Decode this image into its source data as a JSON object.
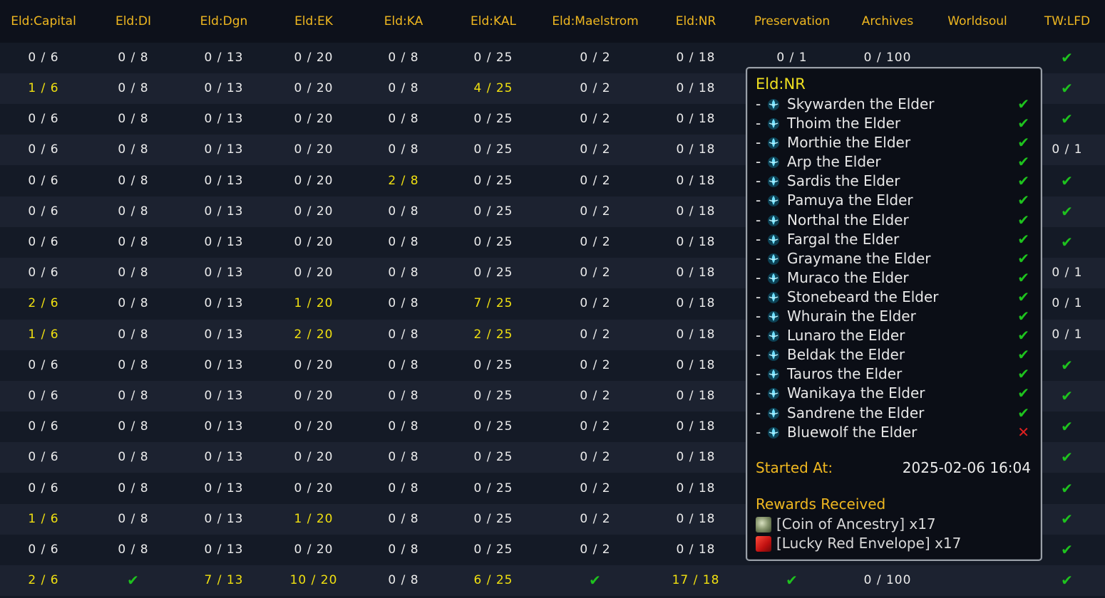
{
  "colors": {
    "header_text": "#f0b820",
    "highlight_text": "#f0e010",
    "check": "#1ec21e",
    "cross": "#e02020"
  },
  "columns": [
    "Eld:Capital",
    "Eld:DI",
    "Eld:Dgn",
    "Eld:EK",
    "Eld:KA",
    "Eld:KAL",
    "Eld:Maelstrom",
    "Eld:NR",
    "Preservation",
    "Archives",
    "Worldsoul",
    "TW:LFD"
  ],
  "rows": [
    [
      {
        "t": "0 / 6"
      },
      {
        "t": "0 / 8"
      },
      {
        "t": "0 / 13"
      },
      {
        "t": "0 / 20"
      },
      {
        "t": "0 / 8"
      },
      {
        "t": "0 / 25"
      },
      {
        "t": "0 / 2"
      },
      {
        "t": "0 / 18"
      },
      {
        "t": "0 / 1"
      },
      {
        "t": "0 / 100"
      },
      {
        "t": ""
      },
      {
        "t": "✔",
        "k": "check"
      }
    ],
    [
      {
        "t": "1 / 6",
        "k": "hl"
      },
      {
        "t": "0 / 8"
      },
      {
        "t": "0 / 13"
      },
      {
        "t": "0 / 20"
      },
      {
        "t": "0 / 8"
      },
      {
        "t": "4 / 25",
        "k": "hl"
      },
      {
        "t": "0 / 2"
      },
      {
        "t": "0 / 18"
      },
      {
        "t": ""
      },
      {
        "t": ""
      },
      {
        "t": ""
      },
      {
        "t": "✔",
        "k": "check"
      }
    ],
    [
      {
        "t": "0 / 6"
      },
      {
        "t": "0 / 8"
      },
      {
        "t": "0 / 13"
      },
      {
        "t": "0 / 20"
      },
      {
        "t": "0 / 8"
      },
      {
        "t": "0 / 25"
      },
      {
        "t": "0 / 2"
      },
      {
        "t": "0 / 18"
      },
      {
        "t": ""
      },
      {
        "t": ""
      },
      {
        "t": ""
      },
      {
        "t": "✔",
        "k": "check"
      }
    ],
    [
      {
        "t": "0 / 6"
      },
      {
        "t": "0 / 8"
      },
      {
        "t": "0 / 13"
      },
      {
        "t": "0 / 20"
      },
      {
        "t": "0 / 8"
      },
      {
        "t": "0 / 25"
      },
      {
        "t": "0 / 2"
      },
      {
        "t": "0 / 18"
      },
      {
        "t": ""
      },
      {
        "t": ""
      },
      {
        "t": ""
      },
      {
        "t": "0 / 1"
      }
    ],
    [
      {
        "t": "0 / 6"
      },
      {
        "t": "0 / 8"
      },
      {
        "t": "0 / 13"
      },
      {
        "t": "0 / 20"
      },
      {
        "t": "2 / 8",
        "k": "hl"
      },
      {
        "t": "0 / 25"
      },
      {
        "t": "0 / 2"
      },
      {
        "t": "0 / 18"
      },
      {
        "t": ""
      },
      {
        "t": ""
      },
      {
        "t": ""
      },
      {
        "t": "✔",
        "k": "check"
      }
    ],
    [
      {
        "t": "0 / 6"
      },
      {
        "t": "0 / 8"
      },
      {
        "t": "0 / 13"
      },
      {
        "t": "0 / 20"
      },
      {
        "t": "0 / 8"
      },
      {
        "t": "0 / 25"
      },
      {
        "t": "0 / 2"
      },
      {
        "t": "0 / 18"
      },
      {
        "t": ""
      },
      {
        "t": ""
      },
      {
        "t": ""
      },
      {
        "t": "✔",
        "k": "check"
      }
    ],
    [
      {
        "t": "0 / 6"
      },
      {
        "t": "0 / 8"
      },
      {
        "t": "0 / 13"
      },
      {
        "t": "0 / 20"
      },
      {
        "t": "0 / 8"
      },
      {
        "t": "0 / 25"
      },
      {
        "t": "0 / 2"
      },
      {
        "t": "0 / 18"
      },
      {
        "t": ""
      },
      {
        "t": ""
      },
      {
        "t": ""
      },
      {
        "t": "✔",
        "k": "check"
      }
    ],
    [
      {
        "t": "0 / 6"
      },
      {
        "t": "0 / 8"
      },
      {
        "t": "0 / 13"
      },
      {
        "t": "0 / 20"
      },
      {
        "t": "0 / 8"
      },
      {
        "t": "0 / 25"
      },
      {
        "t": "0 / 2"
      },
      {
        "t": "0 / 18"
      },
      {
        "t": ""
      },
      {
        "t": ""
      },
      {
        "t": ""
      },
      {
        "t": "0 / 1"
      }
    ],
    [
      {
        "t": "2 / 6",
        "k": "hl"
      },
      {
        "t": "0 / 8"
      },
      {
        "t": "0 / 13"
      },
      {
        "t": "1 / 20",
        "k": "hl"
      },
      {
        "t": "0 / 8"
      },
      {
        "t": "7 / 25",
        "k": "hl"
      },
      {
        "t": "0 / 2"
      },
      {
        "t": "0 / 18"
      },
      {
        "t": ""
      },
      {
        "t": ""
      },
      {
        "t": ""
      },
      {
        "t": "0 / 1"
      }
    ],
    [
      {
        "t": "1 / 6",
        "k": "hl"
      },
      {
        "t": "0 / 8"
      },
      {
        "t": "0 / 13"
      },
      {
        "t": "2 / 20",
        "k": "hl"
      },
      {
        "t": "0 / 8"
      },
      {
        "t": "2 / 25",
        "k": "hl"
      },
      {
        "t": "0 / 2"
      },
      {
        "t": "0 / 18"
      },
      {
        "t": ""
      },
      {
        "t": ""
      },
      {
        "t": ""
      },
      {
        "t": "0 / 1"
      }
    ],
    [
      {
        "t": "0 / 6"
      },
      {
        "t": "0 / 8"
      },
      {
        "t": "0 / 13"
      },
      {
        "t": "0 / 20"
      },
      {
        "t": "0 / 8"
      },
      {
        "t": "0 / 25"
      },
      {
        "t": "0 / 2"
      },
      {
        "t": "0 / 18"
      },
      {
        "t": ""
      },
      {
        "t": ""
      },
      {
        "t": ""
      },
      {
        "t": "✔",
        "k": "check"
      }
    ],
    [
      {
        "t": "0 / 6"
      },
      {
        "t": "0 / 8"
      },
      {
        "t": "0 / 13"
      },
      {
        "t": "0 / 20"
      },
      {
        "t": "0 / 8"
      },
      {
        "t": "0 / 25"
      },
      {
        "t": "0 / 2"
      },
      {
        "t": "0 / 18"
      },
      {
        "t": ""
      },
      {
        "t": ""
      },
      {
        "t": ""
      },
      {
        "t": "✔",
        "k": "check"
      }
    ],
    [
      {
        "t": "0 / 6"
      },
      {
        "t": "0 / 8"
      },
      {
        "t": "0 / 13"
      },
      {
        "t": "0 / 20"
      },
      {
        "t": "0 / 8"
      },
      {
        "t": "0 / 25"
      },
      {
        "t": "0 / 2"
      },
      {
        "t": "0 / 18"
      },
      {
        "t": ""
      },
      {
        "t": ""
      },
      {
        "t": ""
      },
      {
        "t": "✔",
        "k": "check"
      }
    ],
    [
      {
        "t": "0 / 6"
      },
      {
        "t": "0 / 8"
      },
      {
        "t": "0 / 13"
      },
      {
        "t": "0 / 20"
      },
      {
        "t": "0 / 8"
      },
      {
        "t": "0 / 25"
      },
      {
        "t": "0 / 2"
      },
      {
        "t": "0 / 18"
      },
      {
        "t": ""
      },
      {
        "t": ""
      },
      {
        "t": ""
      },
      {
        "t": "✔",
        "k": "check"
      }
    ],
    [
      {
        "t": "0 / 6"
      },
      {
        "t": "0 / 8"
      },
      {
        "t": "0 / 13"
      },
      {
        "t": "0 / 20"
      },
      {
        "t": "0 / 8"
      },
      {
        "t": "0 / 25"
      },
      {
        "t": "0 / 2"
      },
      {
        "t": "0 / 18"
      },
      {
        "t": ""
      },
      {
        "t": ""
      },
      {
        "t": ""
      },
      {
        "t": "✔",
        "k": "check"
      }
    ],
    [
      {
        "t": "1 / 6",
        "k": "hl"
      },
      {
        "t": "0 / 8"
      },
      {
        "t": "0 / 13"
      },
      {
        "t": "1 / 20",
        "k": "hl"
      },
      {
        "t": "0 / 8"
      },
      {
        "t": "0 / 25"
      },
      {
        "t": "0 / 2"
      },
      {
        "t": "0 / 18"
      },
      {
        "t": ""
      },
      {
        "t": ""
      },
      {
        "t": ""
      },
      {
        "t": "✔",
        "k": "check"
      }
    ],
    [
      {
        "t": "0 / 6"
      },
      {
        "t": "0 / 8"
      },
      {
        "t": "0 / 13"
      },
      {
        "t": "0 / 20"
      },
      {
        "t": "0 / 8"
      },
      {
        "t": "0 / 25"
      },
      {
        "t": "0 / 2"
      },
      {
        "t": "0 / 18"
      },
      {
        "t": ""
      },
      {
        "t": ""
      },
      {
        "t": ""
      },
      {
        "t": "✔",
        "k": "check"
      }
    ],
    [
      {
        "t": "2 / 6",
        "k": "hl"
      },
      {
        "t": "✔",
        "k": "check"
      },
      {
        "t": "7 / 13",
        "k": "hl"
      },
      {
        "t": "10 / 20",
        "k": "hl"
      },
      {
        "t": "0 / 8"
      },
      {
        "t": "6 / 25",
        "k": "hl"
      },
      {
        "t": "✔",
        "k": "check"
      },
      {
        "t": "17 / 18",
        "k": "hl"
      },
      {
        "t": "✔",
        "k": "check"
      },
      {
        "t": "0 / 100"
      },
      {
        "t": ""
      },
      {
        "t": "✔",
        "k": "check"
      }
    ]
  ],
  "tooltip": {
    "title": "Eld:NR",
    "items": [
      {
        "name": "Skywarden the Elder",
        "status": "✔",
        "state": "ok"
      },
      {
        "name": "Thoim the Elder",
        "status": "✔",
        "state": "ok"
      },
      {
        "name": "Morthie the Elder",
        "status": "✔",
        "state": "ok"
      },
      {
        "name": "Arp the Elder",
        "status": "✔",
        "state": "ok"
      },
      {
        "name": "Sardis the Elder",
        "status": "✔",
        "state": "ok"
      },
      {
        "name": "Pamuya the Elder",
        "status": "✔",
        "state": "ok"
      },
      {
        "name": "Northal the Elder",
        "status": "✔",
        "state": "ok"
      },
      {
        "name": "Fargal the Elder",
        "status": "✔",
        "state": "ok"
      },
      {
        "name": "Graymane the Elder",
        "status": "✔",
        "state": "ok"
      },
      {
        "name": "Muraco the Elder",
        "status": "✔",
        "state": "ok"
      },
      {
        "name": "Stonebeard the Elder",
        "status": "✔",
        "state": "ok"
      },
      {
        "name": "Whurain the Elder",
        "status": "✔",
        "state": "ok"
      },
      {
        "name": "Lunaro the Elder",
        "status": "✔",
        "state": "ok"
      },
      {
        "name": "Beldak the Elder",
        "status": "✔",
        "state": "ok"
      },
      {
        "name": "Tauros the Elder",
        "status": "✔",
        "state": "ok"
      },
      {
        "name": "Wanikaya the Elder",
        "status": "✔",
        "state": "ok"
      },
      {
        "name": "Sandrene the Elder",
        "status": "✔",
        "state": "ok"
      },
      {
        "name": "Bluewolf the Elder",
        "status": "✕",
        "state": "bad"
      }
    ],
    "started_label": "Started At:",
    "started_value": "2025-02-06 16:04",
    "rewards_title": "Rewards Received",
    "rewards": [
      {
        "text": "[Coin of Ancestry] x17",
        "icon": "coin-icon"
      },
      {
        "text": "[Lucky Red Envelope] x17",
        "icon": "envelope-icon"
      }
    ]
  }
}
